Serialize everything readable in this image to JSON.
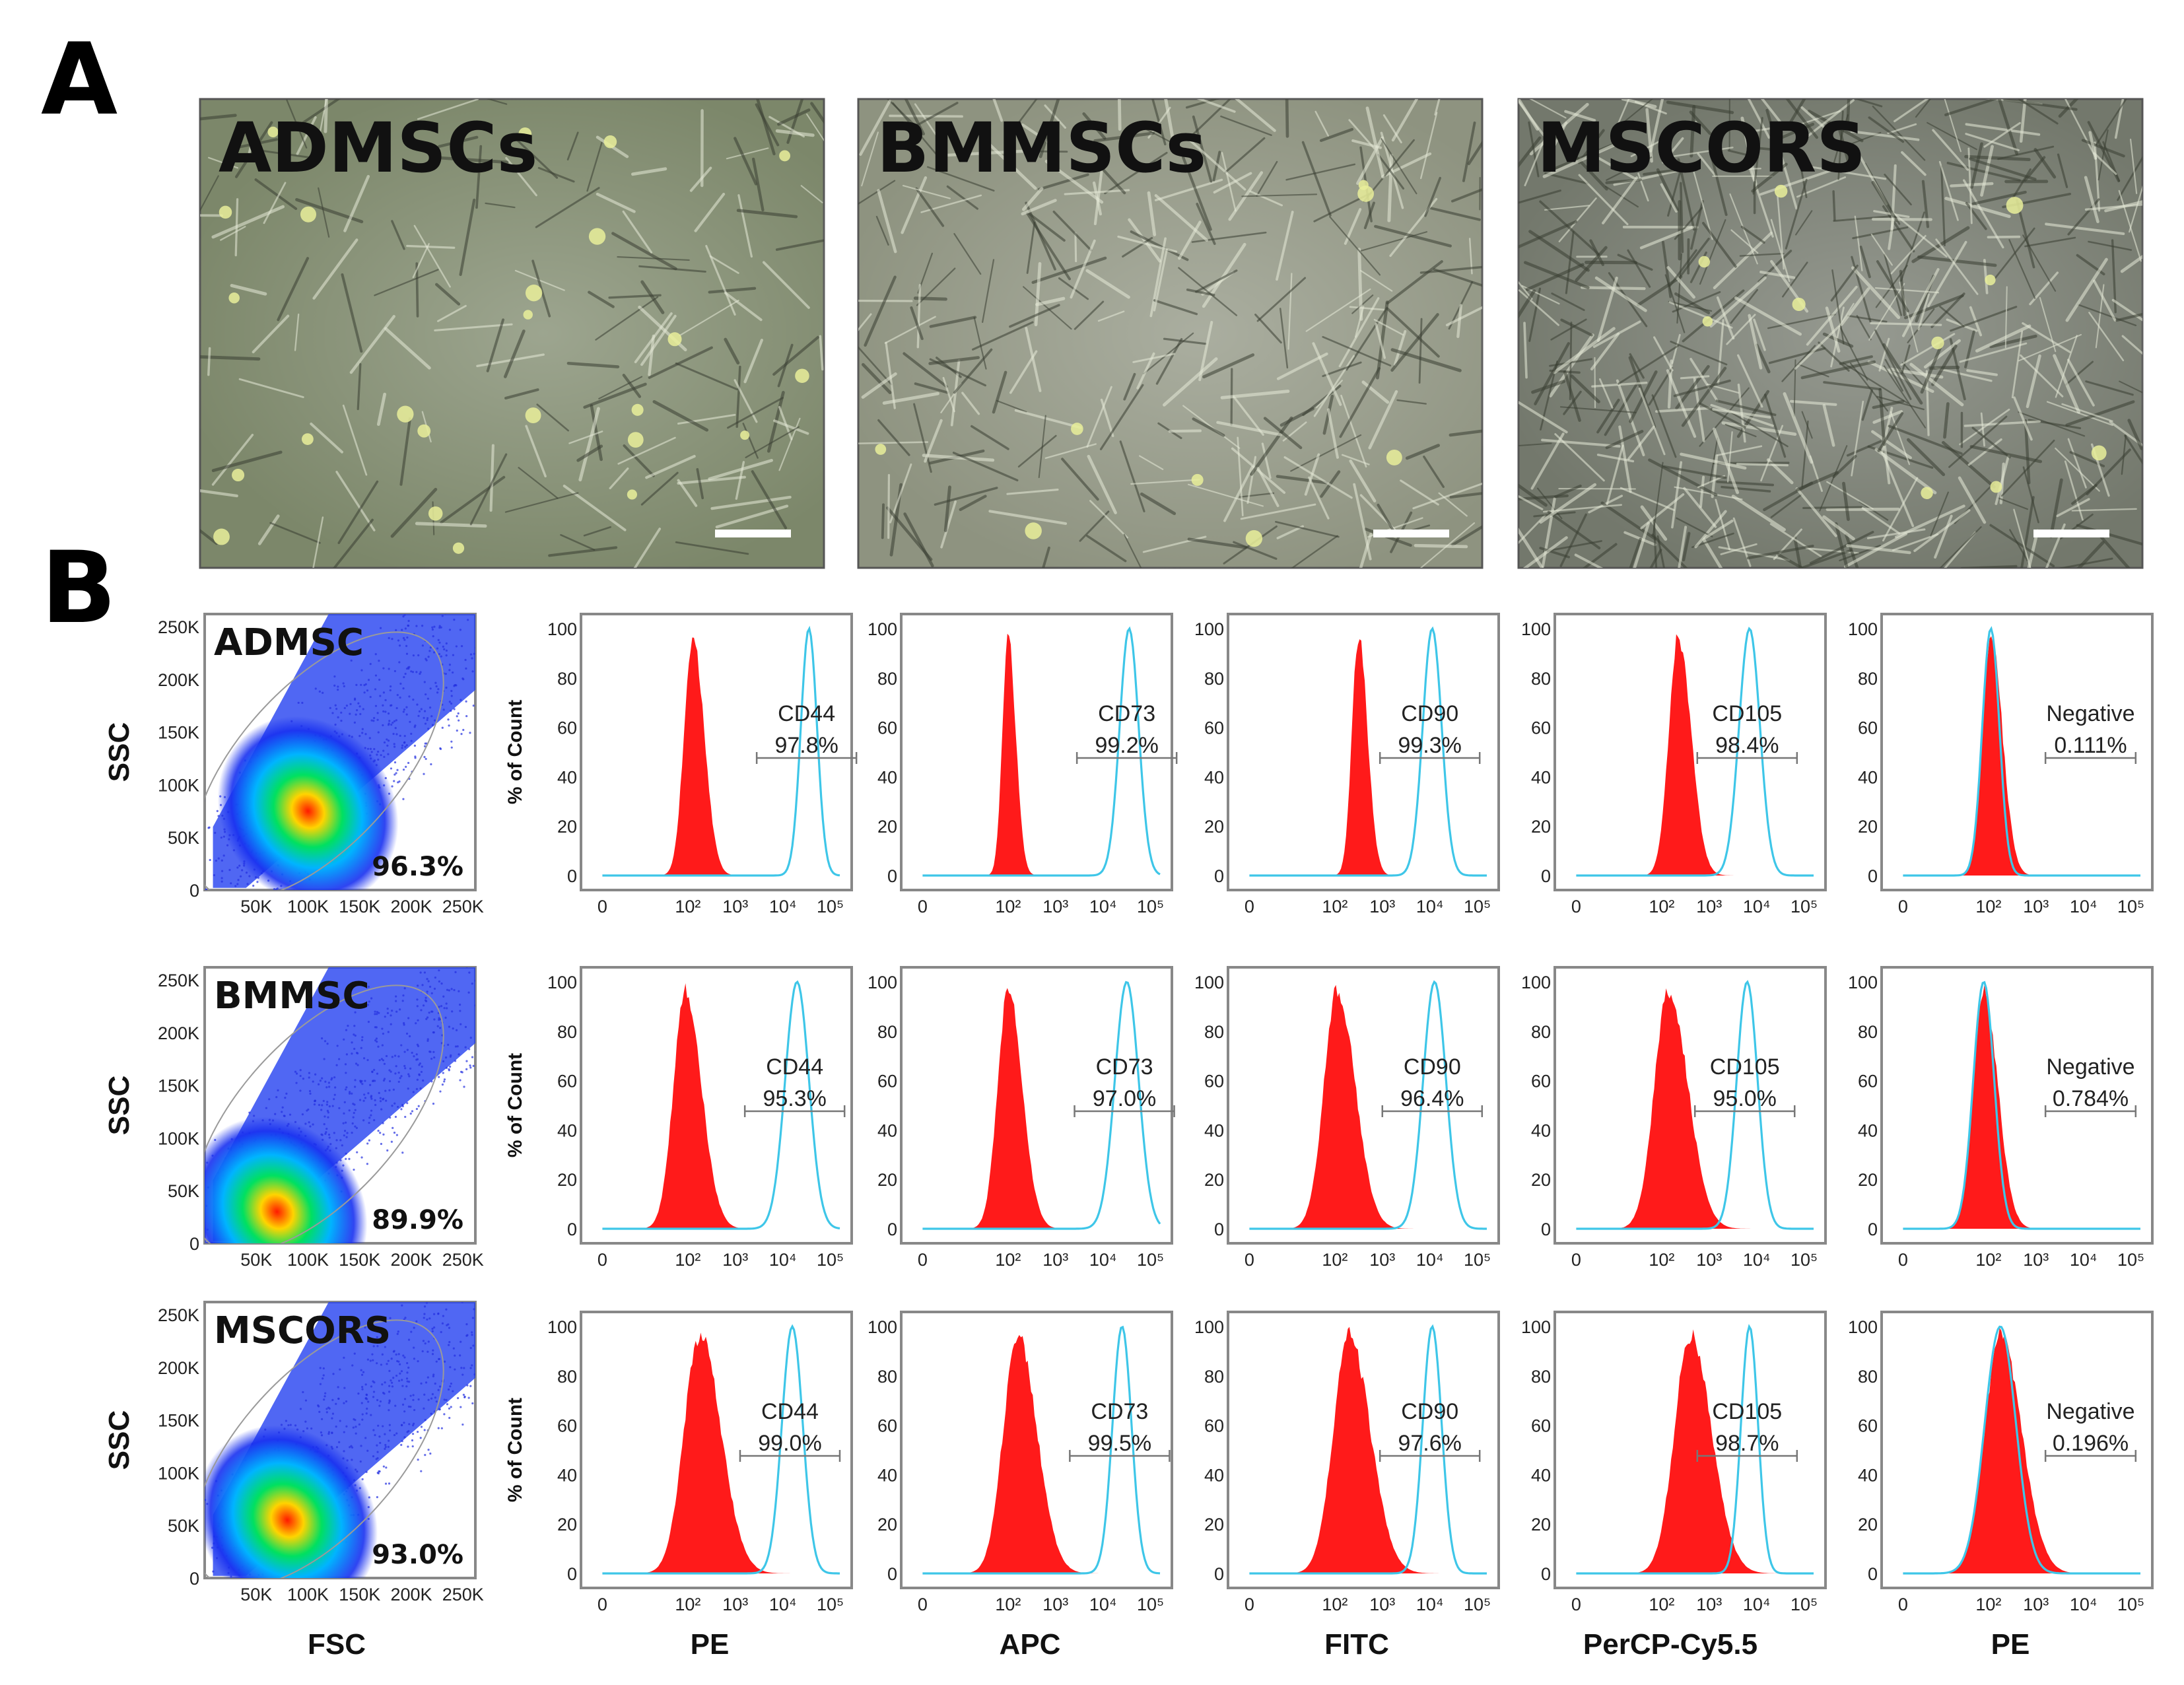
{
  "panel_labels": {
    "a": "A",
    "b": "B"
  },
  "photos": [
    {
      "label": "ADMSCs",
      "tint": "#7c876a",
      "cells": "sparse"
    },
    {
      "label": "BMMSCs",
      "tint": "#8e9380",
      "cells": "medium"
    },
    {
      "label": "MSCORS",
      "tint": "#73786c",
      "cells": "dense"
    }
  ],
  "chart_data": {
    "type": "flow-cytometry-figure",
    "scatter": {
      "xlabel": "FSC",
      "ylabel": "SSC",
      "y_ticks": [
        "0",
        "50K",
        "100K",
        "150K",
        "200K",
        "250K"
      ],
      "x_ticks": [
        "50K",
        "100K",
        "150K",
        "200K",
        "250K"
      ],
      "samples": [
        {
          "label": "ADMSC",
          "gate_pct": "96.3%",
          "center_fsc": 100,
          "center_ssc": 75
        },
        {
          "label": "BMMSC",
          "gate_pct": "89.9%",
          "center_fsc": 70,
          "center_ssc": 30
        },
        {
          "label": "MSCORS",
          "gate_pct": "93.0%",
          "center_fsc": 80,
          "center_ssc": 55
        }
      ]
    },
    "histograms": {
      "ylabel": "% of Count",
      "y_ticks": [
        "0",
        "20",
        "40",
        "60",
        "80",
        "100"
      ],
      "x_ticks": [
        "0",
        "10²",
        "10³",
        "10⁴",
        "10⁵"
      ],
      "channels": [
        "PE",
        "APC",
        "FITC",
        "PerCP-Cy5.5",
        "PE"
      ],
      "rows": [
        {
          "sample": "ADMSC",
          "panels": [
            {
              "marker": "CD44",
              "pct": "97.8%",
              "iso_center": 2.1,
              "iso_width": 0.18,
              "pos_center": 4.55,
              "pos_width": 0.17
            },
            {
              "marker": "CD73",
              "pct": "99.2%",
              "iso_center": 2.0,
              "iso_width": 0.12,
              "pos_center": 4.55,
              "pos_width": 0.2
            },
            {
              "marker": "CD90",
              "pct": "99.3%",
              "iso_center": 2.5,
              "iso_width": 0.14,
              "pos_center": 4.05,
              "pos_width": 0.2
            },
            {
              "marker": "CD105",
              "pct": "98.4%",
              "iso_center": 2.35,
              "iso_width": 0.2,
              "pos_center": 3.85,
              "pos_width": 0.22
            },
            {
              "marker": "Negative",
              "pct": "0.111%",
              "iso_center": 2.05,
              "iso_width": 0.18,
              "pos_center": 2.05,
              "pos_width": 0.18
            }
          ]
        },
        {
          "sample": "BMMSC",
          "panels": [
            {
              "marker": "CD44",
              "pct": "95.3%",
              "iso_center": 1.95,
              "iso_width": 0.25,
              "pos_center": 4.3,
              "pos_width": 0.25
            },
            {
              "marker": "CD73",
              "pct": "97.0%",
              "iso_center": 2.0,
              "iso_width": 0.22,
              "pos_center": 4.5,
              "pos_width": 0.25
            },
            {
              "marker": "CD90",
              "pct": "96.4%",
              "iso_center": 2.05,
              "iso_width": 0.28,
              "pos_center": 4.1,
              "pos_width": 0.24
            },
            {
              "marker": "CD105",
              "pct": "95.0%",
              "iso_center": 2.15,
              "iso_width": 0.3,
              "pos_center": 3.8,
              "pos_width": 0.22
            },
            {
              "marker": "Negative",
              "pct": "0.784%",
              "iso_center": 1.9,
              "iso_width": 0.22,
              "pos_center": 1.9,
              "pos_width": 0.22
            }
          ]
        },
        {
          "sample": "MSCORS",
          "panels": [
            {
              "marker": "CD44",
              "pct": "99.0%",
              "iso_center": 2.25,
              "iso_width": 0.33,
              "pos_center": 4.2,
              "pos_width": 0.22
            },
            {
              "marker": "CD73",
              "pct": "99.5%",
              "iso_center": 2.2,
              "iso_width": 0.3,
              "pos_center": 4.4,
              "pos_width": 0.2
            },
            {
              "marker": "CD90",
              "pct": "97.6%",
              "iso_center": 2.3,
              "iso_width": 0.33,
              "pos_center": 4.05,
              "pos_width": 0.2
            },
            {
              "marker": "CD105",
              "pct": "98.7%",
              "iso_center": 2.6,
              "iso_width": 0.33,
              "pos_center": 3.85,
              "pos_width": 0.18
            },
            {
              "marker": "Negative",
              "pct": "0.196%",
              "iso_center": 2.25,
              "iso_width": 0.33,
              "pos_center": 2.25,
              "pos_width": 0.33
            }
          ]
        }
      ]
    }
  },
  "colors": {
    "isotype_fill": "#ff1a1a",
    "stained_line": "#3ec6e8",
    "frame": "#888888"
  }
}
